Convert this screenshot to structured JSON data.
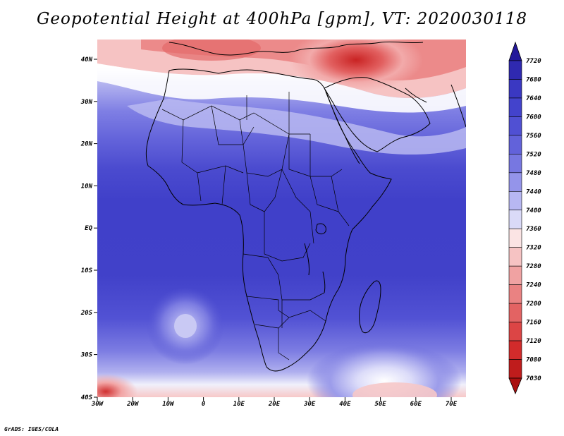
{
  "title": "Geopotential Height at 400hPa [gpm], VT: 2020030118",
  "footer": "GrADS: IGES/COLA",
  "axes": {
    "lat_labels": [
      "40N",
      "30N",
      "20N",
      "10N",
      "EQ",
      "10S",
      "20S",
      "30S",
      "40S"
    ],
    "lon_labels": [
      "30W",
      "20W",
      "10W",
      "0",
      "10E",
      "20E",
      "30E",
      "40E",
      "50E",
      "60E",
      "70E"
    ]
  },
  "colorbar": {
    "levels": [
      "7720",
      "7680",
      "7640",
      "7600",
      "7560",
      "7520",
      "7480",
      "7440",
      "7400",
      "7360",
      "7320",
      "7280",
      "7240",
      "7200",
      "7160",
      "7120",
      "7080",
      "7030"
    ],
    "colors": [
      "#23189a",
      "#2f29b0",
      "#3a38c2",
      "#4343cc",
      "#5050d3",
      "#6262da",
      "#7777e1",
      "#9494ea",
      "#b7b7f2",
      "#dadaf8",
      "#fbe4e4",
      "#f6c3c3",
      "#f0a2a2",
      "#ea8282",
      "#e36363",
      "#dc4545",
      "#d22b2b",
      "#bf1c1c",
      "#aa1010"
    ]
  },
  "field_colors": {
    "deep": "#3d3dc4",
    "mid": "#5757d6",
    "light": "#8c8ce8",
    "pale": "#c9c9f4",
    "white": "#ffffff",
    "pink": "#f6c3c3",
    "red": "#dd4a4a",
    "darkred": "#c42626"
  }
}
